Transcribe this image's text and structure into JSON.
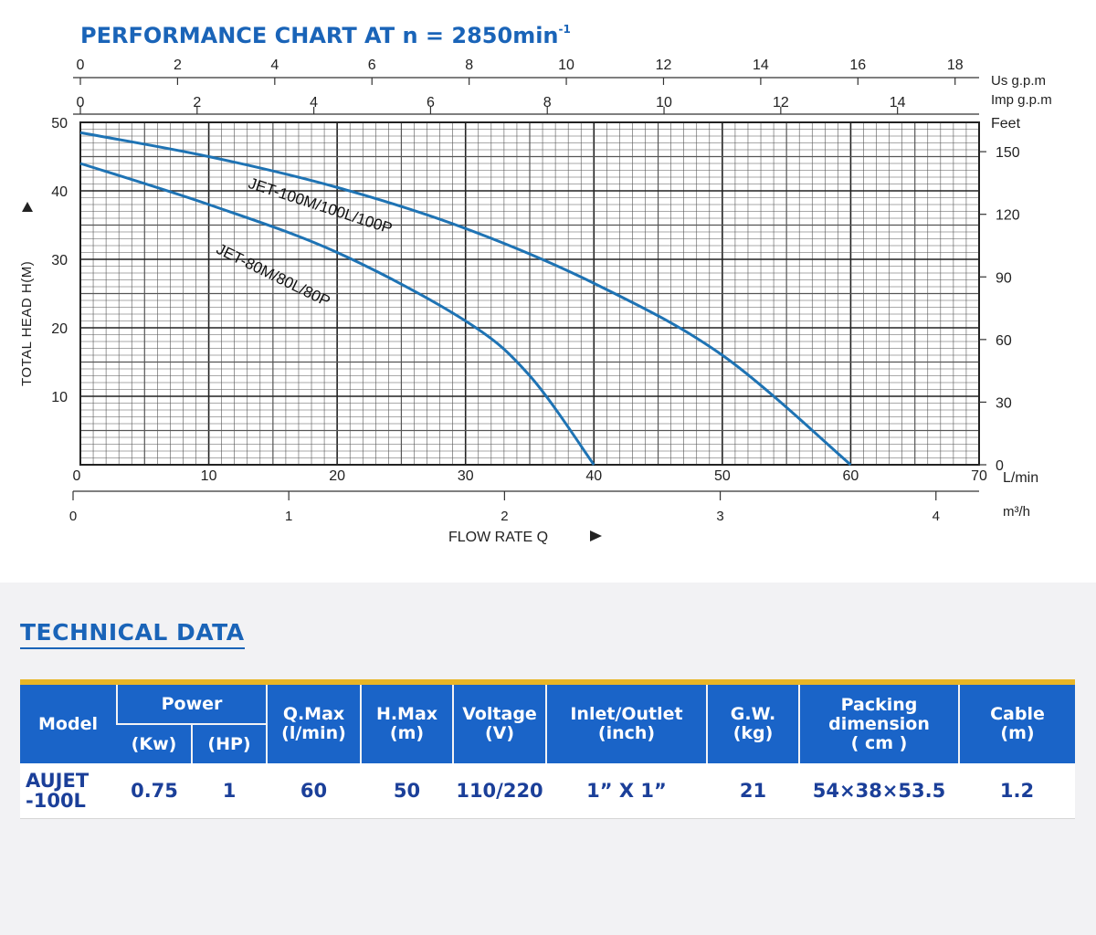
{
  "chart_data": {
    "type": "line",
    "title": "PERFORMANCE CHART AT n = 2850min",
    "title_superscript": "-1",
    "xlabel": "FLOW RATE Q",
    "ylabel": "TOTAL HEAD H(M)",
    "x_unit": "L/min",
    "y_unit": "m",
    "xlim": [
      0,
      70
    ],
    "ylim": [
      0,
      50
    ],
    "x_ticks": [
      0,
      10,
      20,
      30,
      40,
      50,
      60,
      70
    ],
    "y_ticks": [
      10,
      20,
      30,
      40,
      50
    ],
    "grid": true,
    "series": [
      {
        "name": "JET-100M/100L/100P",
        "x": [
          0,
          10,
          20,
          30,
          40,
          50,
          60
        ],
        "y": [
          48.5,
          45,
          40.5,
          34.5,
          26.5,
          16,
          0
        ]
      },
      {
        "name": "JET-80M/80L/80P",
        "x": [
          0,
          10,
          20,
          30,
          35,
          40
        ],
        "y": [
          44,
          38,
          31,
          21,
          13,
          0
        ]
      }
    ],
    "secondary_axes": {
      "top_usgpm": {
        "unit": "Us g.p.m",
        "ticks": [
          0,
          2,
          4,
          6,
          8,
          10,
          12,
          14,
          16,
          18
        ]
      },
      "top_impgpm": {
        "unit": "Imp g.p.m",
        "ticks": [
          0,
          2,
          4,
          6,
          8,
          10,
          12,
          14
        ]
      },
      "right_feet": {
        "unit": "Feet",
        "ticks": [
          0,
          30,
          60,
          90,
          120,
          150
        ]
      },
      "bottom_m3h": {
        "unit": "m³/h",
        "ticks": [
          0,
          1,
          2,
          3,
          4
        ]
      }
    }
  },
  "technical": {
    "title": "TECHNICAL DATA",
    "headers": {
      "model": "Model",
      "power": "Power",
      "kw": "(Kw)",
      "hp": "(HP)",
      "qmax_1": "Q.Max",
      "qmax_2": "(l/min)",
      "hmax_1": "H.Max",
      "hmax_2": "(m)",
      "voltage_1": "Voltage",
      "voltage_2": "(V)",
      "inlet_1": "Inlet/Outlet",
      "inlet_2": "(inch)",
      "gw_1": "G.W.",
      "gw_2": "(kg)",
      "pack_1": "Packing",
      "pack_2": "dimension",
      "pack_3": "( cm )",
      "cable_1": "Cable",
      "cable_2": "(m)"
    },
    "rows": [
      {
        "model_1": "AUJET",
        "model_2": "-100L",
        "kw": "0.75",
        "hp": "1",
        "qmax": "60",
        "hmax": "50",
        "voltage": "110/220",
        "inlet": "1” X 1”",
        "gw": "21",
        "packing": "54×38×53.5",
        "cable": "1.2"
      }
    ]
  },
  "colors": {
    "title": "#1a64b8",
    "curve": "#1e73b4",
    "grid": "#555555",
    "header_bg": "#1a64c8",
    "accent": "#e8b526"
  }
}
